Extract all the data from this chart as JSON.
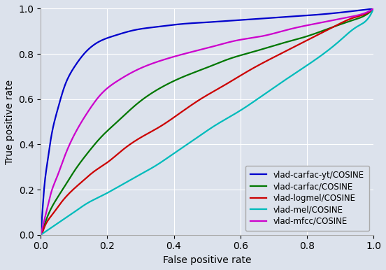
{
  "title": "",
  "xlabel": "False positive rate",
  "ylabel": "True positive rate",
  "xlim": [
    0.0,
    1.0
  ],
  "ylim": [
    0.0,
    1.0
  ],
  "background_color": "#dce2ec",
  "figure_facecolor": "#dce2ec",
  "grid": true,
  "curves": [
    {
      "label": "vlad-carfac-yt/COSINE",
      "color": "#0000cc",
      "fpr": [
        0.0,
        0.005,
        0.01,
        0.02,
        0.03,
        0.05,
        0.07,
        0.1,
        0.13,
        0.17,
        0.22,
        0.28,
        0.35,
        0.42,
        0.5,
        0.58,
        0.65,
        0.72,
        0.8,
        0.88,
        0.93,
        0.97,
        1.0
      ],
      "tpr": [
        0.0,
        0.1,
        0.2,
        0.32,
        0.42,
        0.55,
        0.65,
        0.74,
        0.8,
        0.85,
        0.88,
        0.905,
        0.92,
        0.932,
        0.94,
        0.948,
        0.955,
        0.962,
        0.97,
        0.98,
        0.988,
        0.995,
        1.0
      ]
    },
    {
      "label": "vlad-carfac/COSINE",
      "color": "#007700",
      "fpr": [
        0.0,
        0.005,
        0.01,
        0.02,
        0.04,
        0.07,
        0.1,
        0.14,
        0.18,
        0.23,
        0.29,
        0.36,
        0.43,
        0.5,
        0.57,
        0.64,
        0.72,
        0.8,
        0.88,
        0.94,
        0.98,
        1.0
      ],
      "tpr": [
        0.0,
        0.02,
        0.04,
        0.08,
        0.14,
        0.21,
        0.28,
        0.36,
        0.43,
        0.5,
        0.58,
        0.65,
        0.7,
        0.74,
        0.78,
        0.81,
        0.845,
        0.878,
        0.92,
        0.95,
        0.975,
        1.0
      ]
    },
    {
      "label": "vlad-logmel/COSINE",
      "color": "#cc0000",
      "fpr": [
        0.0,
        0.005,
        0.01,
        0.02,
        0.04,
        0.06,
        0.09,
        0.12,
        0.16,
        0.2,
        0.25,
        0.3,
        0.36,
        0.42,
        0.48,
        0.55,
        0.63,
        0.72,
        0.8,
        0.88,
        0.94,
        0.98,
        1.0
      ],
      "tpr": [
        0.0,
        0.01,
        0.03,
        0.06,
        0.1,
        0.14,
        0.19,
        0.23,
        0.28,
        0.32,
        0.38,
        0.43,
        0.48,
        0.54,
        0.6,
        0.66,
        0.73,
        0.8,
        0.86,
        0.92,
        0.96,
        0.98,
        1.0
      ]
    },
    {
      "label": "vlad-mel/COSINE",
      "color": "#00bbbb",
      "fpr": [
        0.0,
        0.005,
        0.01,
        0.02,
        0.04,
        0.07,
        0.1,
        0.14,
        0.18,
        0.23,
        0.29,
        0.35,
        0.4,
        0.46,
        0.52,
        0.6,
        0.68,
        0.76,
        0.84,
        0.9,
        0.95,
        0.99,
        1.0
      ],
      "tpr": [
        0.0,
        0.005,
        0.01,
        0.02,
        0.04,
        0.07,
        0.1,
        0.14,
        0.17,
        0.21,
        0.26,
        0.31,
        0.36,
        0.42,
        0.48,
        0.55,
        0.63,
        0.71,
        0.79,
        0.86,
        0.92,
        0.97,
        1.0
      ]
    },
    {
      "label": "vlad-mfcc/COSINE",
      "color": "#cc00cc",
      "fpr": [
        0.0,
        0.005,
        0.01,
        0.02,
        0.03,
        0.05,
        0.07,
        0.1,
        0.14,
        0.18,
        0.23,
        0.29,
        0.36,
        0.43,
        0.51,
        0.59,
        0.67,
        0.75,
        0.83,
        0.9,
        0.95,
        0.98,
        1.0
      ],
      "tpr": [
        0.0,
        0.03,
        0.06,
        0.12,
        0.18,
        0.26,
        0.34,
        0.44,
        0.54,
        0.62,
        0.68,
        0.73,
        0.77,
        0.8,
        0.83,
        0.86,
        0.88,
        0.91,
        0.935,
        0.955,
        0.97,
        0.984,
        1.0
      ]
    }
  ],
  "legend_loc": "lower right",
  "legend_fontsize": 8.5,
  "axis_fontsize": 10,
  "tick_fontsize": 10,
  "linewidth": 1.6
}
